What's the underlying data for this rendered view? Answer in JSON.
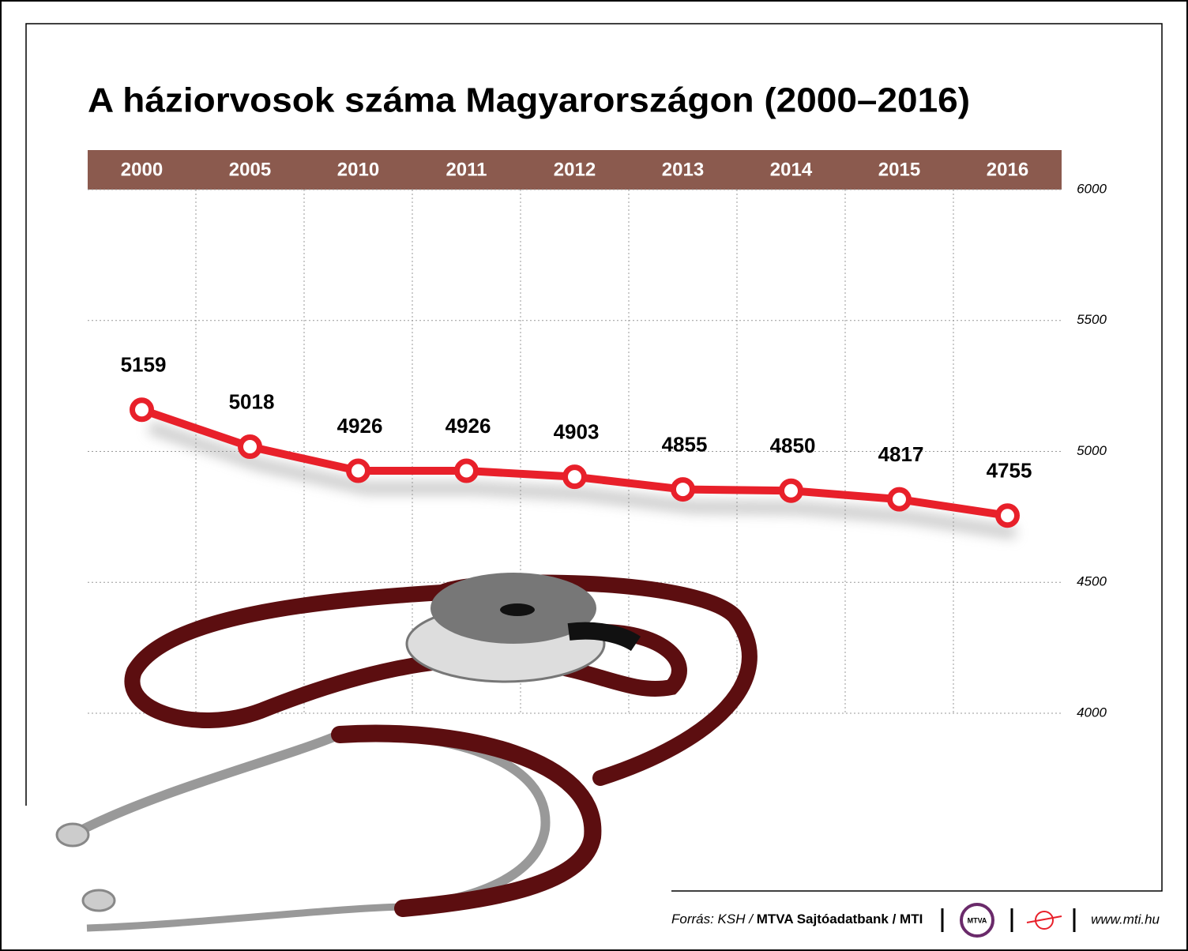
{
  "chart_data": {
    "type": "line",
    "title": "A háziorvosok száma Magyarországon (2000–2016)",
    "categories": [
      "2000",
      "2005",
      "2010",
      "2011",
      "2012",
      "2013",
      "2014",
      "2015",
      "2016"
    ],
    "series": [
      {
        "name": "háziorvosok",
        "color": "#e8202a",
        "values": [
          5159,
          5018,
          4926,
          4926,
          4903,
          4855,
          4850,
          4817,
          4755
        ]
      }
    ],
    "ylim": [
      4000,
      6000
    ],
    "yticks": [
      4000,
      4500,
      5000,
      5500,
      6000
    ],
    "grid": true,
    "header_color": "#8b5a4e",
    "source": {
      "prefix": "Forrás: KSH /",
      "agencies": "MTVA Sajtóadatbank / MTI",
      "logo": "MTVA",
      "url": "www.mti.hu"
    }
  }
}
